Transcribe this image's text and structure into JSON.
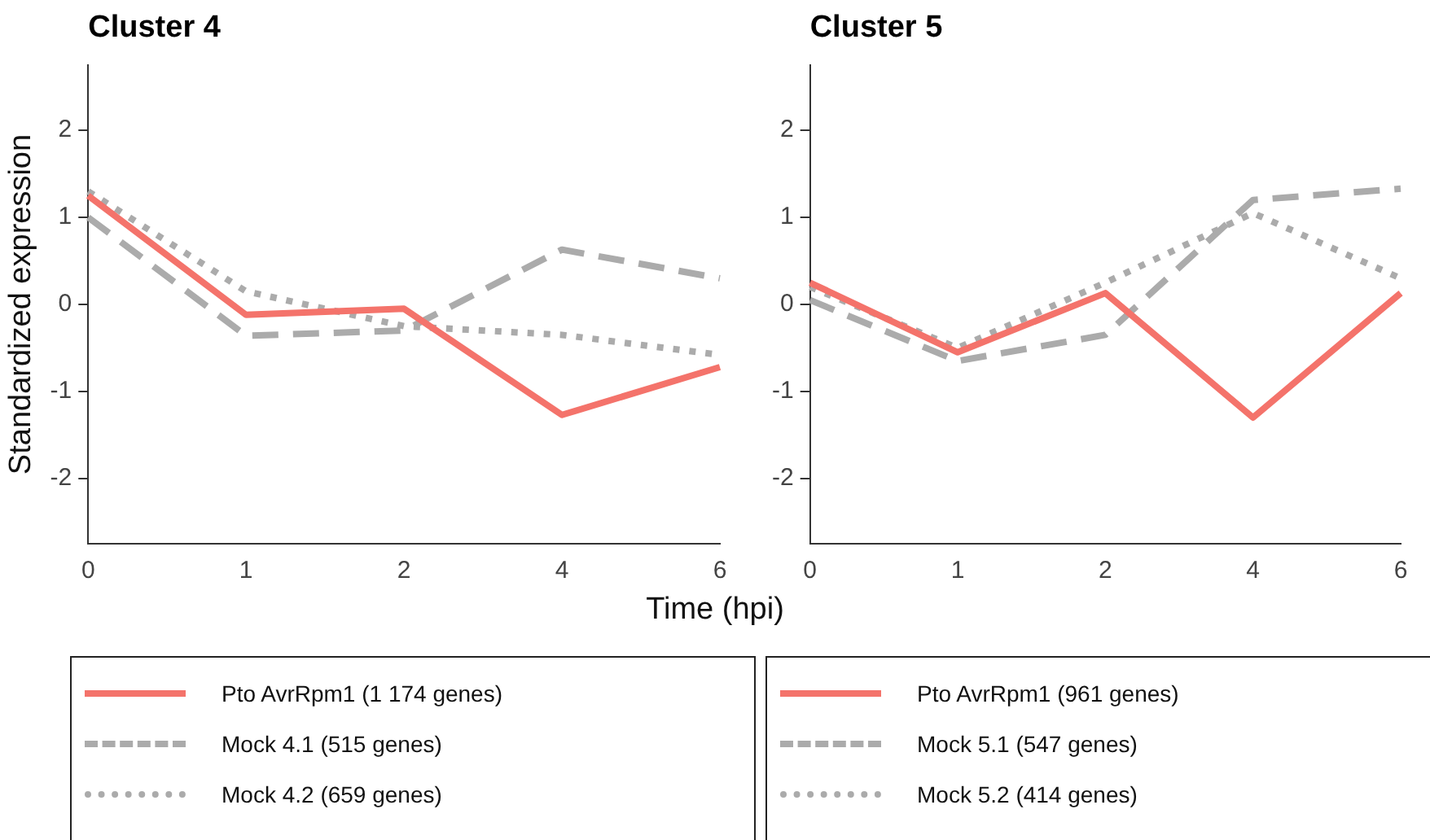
{
  "chart_data": [
    {
      "type": "line",
      "title": "Cluster 4",
      "xlabel": "Time (hpi)",
      "ylabel": "Standardized expression",
      "categories": [
        "0",
        "1",
        "2",
        "4",
        "6"
      ],
      "ylim": [
        -2.75,
        2.75
      ],
      "yticks": [
        -2,
        -1,
        0,
        1,
        2
      ],
      "grid": false,
      "legend": "bottom",
      "marker": "none",
      "series": [
        {
          "name": "Pto AvrRpm1 (1 174 genes)",
          "color": "#f4736b",
          "line_style": "solid",
          "values": [
            1.25,
            -0.12,
            -0.05,
            -1.27,
            -0.72
          ]
        },
        {
          "name": "Mock 4.1 (515 genes)",
          "color": "#ababab",
          "line_style": "dashed",
          "values": [
            1.0,
            -0.36,
            -0.3,
            0.63,
            0.3
          ]
        },
        {
          "name": "Mock 4.2 (659 genes)",
          "color": "#ababab",
          "line_style": "dotted",
          "values": [
            1.3,
            0.15,
            -0.25,
            -0.35,
            -0.58
          ]
        }
      ]
    },
    {
      "type": "line",
      "title": "Cluster 5",
      "categories": [
        "0",
        "1",
        "2",
        "4",
        "6"
      ],
      "ylim": [
        -2.75,
        2.75
      ],
      "yticks": [
        -2,
        -1,
        0,
        1,
        2
      ],
      "grid": false,
      "legend": "bottom",
      "marker": "none",
      "series": [
        {
          "name": "Pto AvrRpm1 (961 genes)",
          "color": "#f4736b",
          "line_style": "solid",
          "values": [
            0.25,
            -0.55,
            0.13,
            -1.3,
            0.13
          ]
        },
        {
          "name": "Mock 5.1 (547 genes)",
          "color": "#ababab",
          "line_style": "dashed",
          "values": [
            0.05,
            -0.65,
            -0.35,
            1.2,
            1.33
          ]
        },
        {
          "name": "Mock 5.2 (414 genes)",
          "color": "#ababab",
          "line_style": "dotted",
          "values": [
            0.2,
            -0.5,
            0.25,
            1.05,
            0.3
          ]
        }
      ]
    }
  ]
}
